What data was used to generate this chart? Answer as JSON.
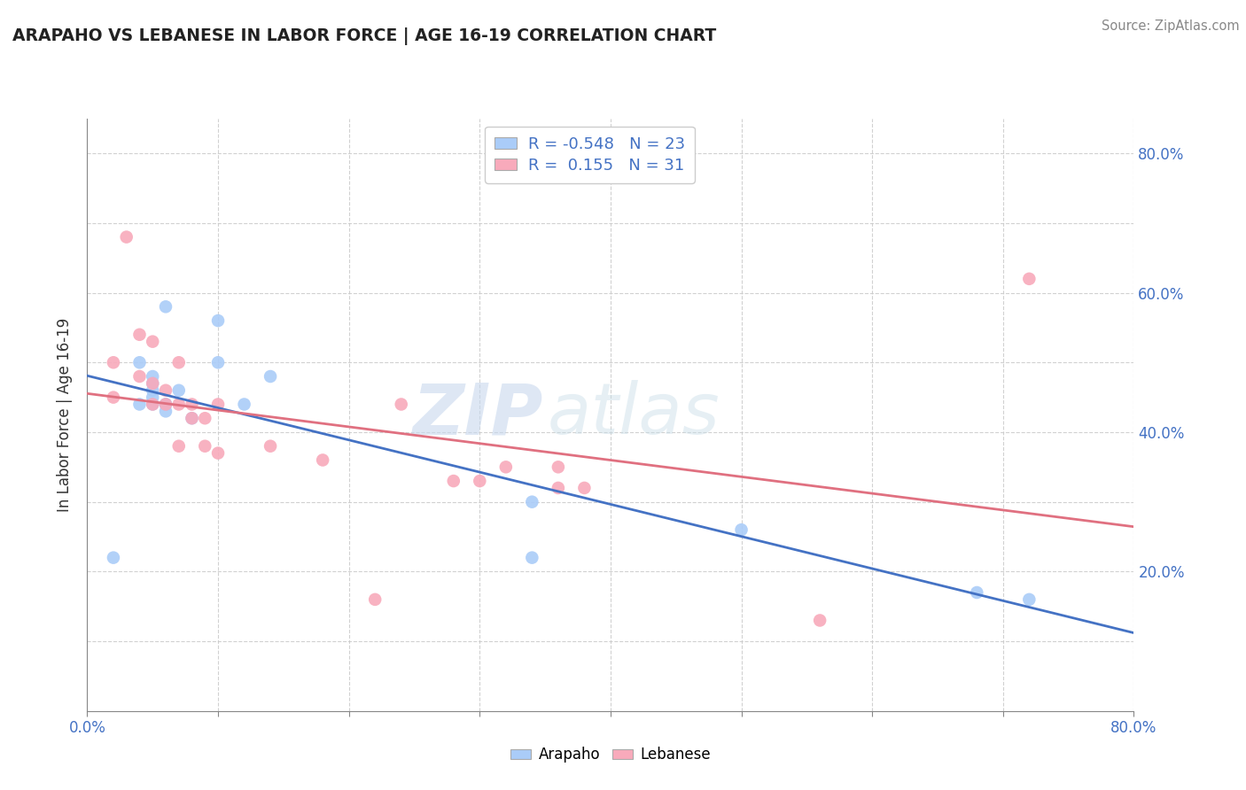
{
  "title": "ARAPAHO VS LEBANESE IN LABOR FORCE | AGE 16-19 CORRELATION CHART",
  "source_text": "Source: ZipAtlas.com",
  "ylabel": "In Labor Force | Age 16-19",
  "xlim": [
    0.0,
    0.8
  ],
  "ylim": [
    0.0,
    0.85
  ],
  "x_ticks": [
    0.0,
    0.1,
    0.2,
    0.3,
    0.4,
    0.5,
    0.6,
    0.7,
    0.8
  ],
  "y_ticks": [
    0.0,
    0.1,
    0.2,
    0.3,
    0.4,
    0.5,
    0.6,
    0.7,
    0.8
  ],
  "y_right_labels": [
    "",
    "",
    "20.0%",
    "",
    "40.0%",
    "",
    "60.0%",
    "",
    "80.0%"
  ],
  "arapaho_R": -0.548,
  "arapaho_N": 23,
  "lebanese_R": 0.155,
  "lebanese_N": 31,
  "arapaho_color": "#aaccf8",
  "lebanese_color": "#f8aabb",
  "arapaho_line_color": "#4472c4",
  "lebanese_line_color": "#e07080",
  "watermark_zip": "ZIP",
  "watermark_atlas": "atlas",
  "arapaho_x": [
    0.02,
    0.04,
    0.04,
    0.05,
    0.05,
    0.05,
    0.05,
    0.05,
    0.06,
    0.06,
    0.06,
    0.06,
    0.07,
    0.08,
    0.1,
    0.1,
    0.12,
    0.14,
    0.34,
    0.34,
    0.5,
    0.68,
    0.72
  ],
  "arapaho_y": [
    0.22,
    0.44,
    0.5,
    0.44,
    0.45,
    0.46,
    0.47,
    0.48,
    0.43,
    0.44,
    0.44,
    0.58,
    0.46,
    0.42,
    0.5,
    0.56,
    0.44,
    0.48,
    0.3,
    0.22,
    0.26,
    0.17,
    0.16
  ],
  "lebanese_x": [
    0.02,
    0.02,
    0.03,
    0.04,
    0.04,
    0.05,
    0.05,
    0.05,
    0.06,
    0.06,
    0.07,
    0.07,
    0.07,
    0.08,
    0.08,
    0.09,
    0.09,
    0.1,
    0.1,
    0.14,
    0.18,
    0.22,
    0.24,
    0.28,
    0.3,
    0.32,
    0.36,
    0.36,
    0.38,
    0.56,
    0.72
  ],
  "lebanese_y": [
    0.45,
    0.5,
    0.68,
    0.48,
    0.54,
    0.44,
    0.47,
    0.53,
    0.44,
    0.46,
    0.38,
    0.44,
    0.5,
    0.42,
    0.44,
    0.38,
    0.42,
    0.44,
    0.37,
    0.38,
    0.36,
    0.16,
    0.44,
    0.33,
    0.33,
    0.35,
    0.32,
    0.35,
    0.32,
    0.13,
    0.62
  ]
}
